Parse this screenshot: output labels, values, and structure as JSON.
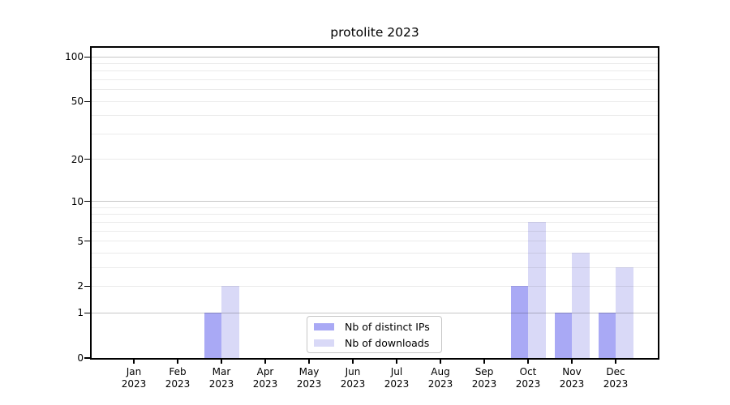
{
  "title": "protolite 2023",
  "colors": {
    "distinct_ips_bar": "#a9a9f5",
    "downloads_bar": "#d9d9f7",
    "major_grid": "rgba(0,0,0,0.22)",
    "minor_grid": "rgba(0,0,0,0.08)",
    "spine": "#000000",
    "legend_border": "#c7c7c7"
  },
  "chart_data": {
    "type": "bar",
    "title": "protolite 2023",
    "categories": [
      "Jan",
      "Feb",
      "Mar",
      "Apr",
      "May",
      "Jun",
      "Jul",
      "Aug",
      "Sep",
      "Oct",
      "Nov",
      "Dec"
    ],
    "year_label": "2023",
    "series": [
      {
        "name": "Nb of distinct IPs",
        "color": "#a9a9f5",
        "values": [
          0,
          0,
          1,
          0,
          0,
          0,
          0,
          0,
          0,
          2,
          1,
          1
        ]
      },
      {
        "name": "Nb of downloads",
        "color": "#d9d9f7",
        "values": [
          0,
          0,
          2,
          0,
          0,
          0,
          0,
          0,
          0,
          7,
          4,
          3
        ]
      }
    ],
    "xlabel": "",
    "ylabel": "",
    "yscale": "log1p",
    "ylim": [
      0,
      115
    ],
    "yticks": [
      0,
      1,
      2,
      5,
      10,
      20,
      50,
      100
    ],
    "major_gridlines": [
      1,
      10,
      100
    ],
    "minor_gridlines": [
      2,
      3,
      4,
      5,
      6,
      7,
      8,
      9,
      20,
      30,
      40,
      50,
      60,
      70,
      80,
      90
    ],
    "grid": "on",
    "legend_position": "lower center"
  },
  "legend": {
    "entries": [
      "Nb of distinct IPs",
      "Nb of downloads"
    ]
  }
}
